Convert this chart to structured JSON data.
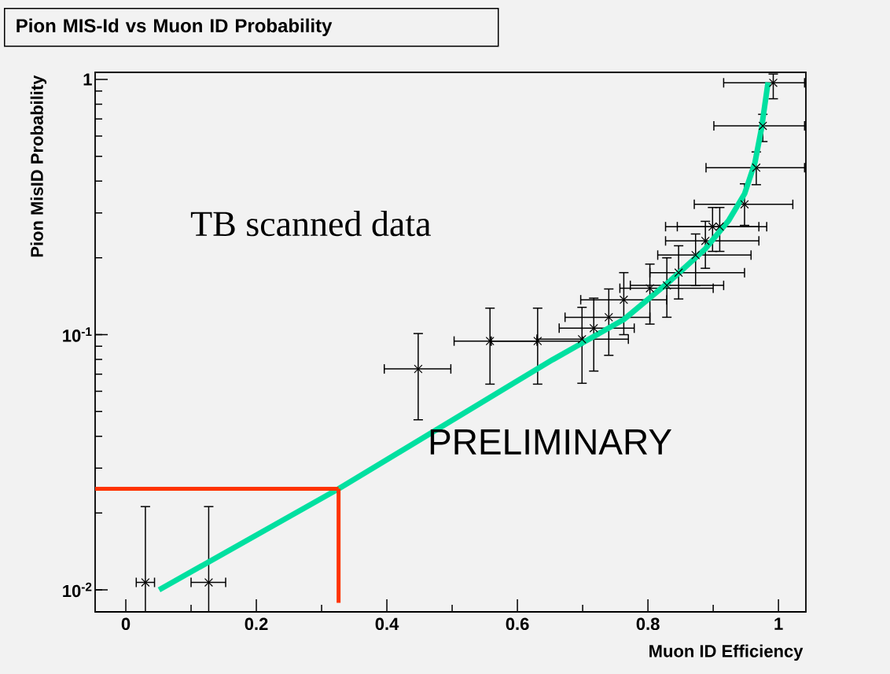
{
  "chart_data": {
    "type": "scatter",
    "title": "Pion MIS-Id vs Muon ID Probability",
    "xlabel": "Muon ID Efficiency",
    "ylabel": "Pion MisID Probability",
    "annotations": [
      "TB scanned data",
      "PRELIMINARY"
    ],
    "log": "y",
    "xlim": [
      -0.047,
      1.042
    ],
    "ylim": [
      0.0082,
      1.066
    ],
    "xticks": [
      0,
      0.2,
      0.4,
      0.6,
      0.8,
      1
    ],
    "yticks": [
      {
        "value": 0.01,
        "label": "10$^{-2}$"
      },
      {
        "value": 0.1,
        "label": "10$^{-1}$"
      },
      1
    ],
    "series": [
      {
        "type": "scatter",
        "marker": "cross",
        "color": "#000000",
        "x": [
          0.03,
          0.127,
          0.448,
          0.558,
          0.631,
          0.699,
          0.717,
          0.74,
          0.763,
          0.803,
          0.829,
          0.847,
          0.873,
          0.888,
          0.899,
          0.91,
          0.948,
          0.966,
          0.976,
          0.992
        ],
        "values": [
          0.0107,
          0.0107,
          0.0734,
          0.0944,
          0.0944,
          0.096,
          0.106,
          0.117,
          0.137,
          0.152,
          0.156,
          0.175,
          0.205,
          0.233,
          0.265,
          0.265,
          0.324,
          0.451,
          0.658,
          0.97
        ],
        "errors": [
          [
            0.0082,
            0.0212
          ],
          [
            0.0082,
            0.0212
          ],
          [
            0.0464,
            0.101
          ],
          [
            0.064,
            0.127
          ],
          [
            0.064,
            0.127
          ],
          [
            0.0645,
            0.128
          ],
          [
            0.072,
            0.139
          ],
          [
            0.083,
            0.151
          ],
          [
            0.1,
            0.175
          ],
          [
            0.11,
            0.189
          ],
          [
            0.117,
            0.2
          ],
          [
            0.138,
            0.223
          ],
          [
            0.156,
            0.248
          ],
          [
            0.182,
            0.278
          ],
          [
            0.212,
            0.315
          ],
          [
            0.212,
            0.315
          ],
          [
            0.268,
            0.39
          ],
          [
            0.387,
            0.52
          ],
          [
            0.571,
            0.73
          ],
          [
            0.84,
            1.05
          ]
        ],
        "xerrors": [
          [
            0.016,
            0.044
          ],
          [
            0.1,
            0.153
          ],
          [
            0.396,
            0.498
          ],
          [
            0.503,
            0.63
          ],
          [
            0.56,
            0.7
          ],
          [
            0.63,
            0.77
          ],
          [
            0.664,
            0.779
          ],
          [
            0.673,
            0.803
          ],
          [
            0.697,
            0.829
          ],
          [
            0.757,
            0.9
          ],
          [
            0.773,
            0.916
          ],
          [
            0.803,
            0.948
          ],
          [
            0.815,
            0.958
          ],
          [
            0.827,
            0.97
          ],
          [
            0.827,
            0.982
          ],
          [
            0.845,
            0.97
          ],
          [
            0.871,
            1.022
          ],
          [
            0.889,
            1.04
          ],
          [
            0.901,
            1.04
          ],
          [
            0.916,
            1.04
          ]
        ]
      },
      {
        "type": "line",
        "color": "#00e0a0",
        "x": [
          0.051,
          0.326,
          0.59,
          0.654,
          0.699,
          0.763,
          0.831,
          0.888,
          0.924,
          0.948,
          0.964,
          0.974,
          0.984
        ],
        "values": [
          0.01,
          0.0249,
          0.0636,
          0.0798,
          0.0927,
          0.1146,
          0.16,
          0.217,
          0.281,
          0.356,
          0.473,
          0.643,
          0.973
        ]
      },
      {
        "type": "line",
        "color": "#ff3300",
        "x": [
          -0.047,
          0.326
        ],
        "values": [
          0.0249,
          0.0249
        ]
      },
      {
        "type": "line",
        "color": "#ff3300",
        "x": [
          0.326,
          0.326
        ],
        "values": [
          0.0249,
          0.0089
        ]
      }
    ]
  }
}
